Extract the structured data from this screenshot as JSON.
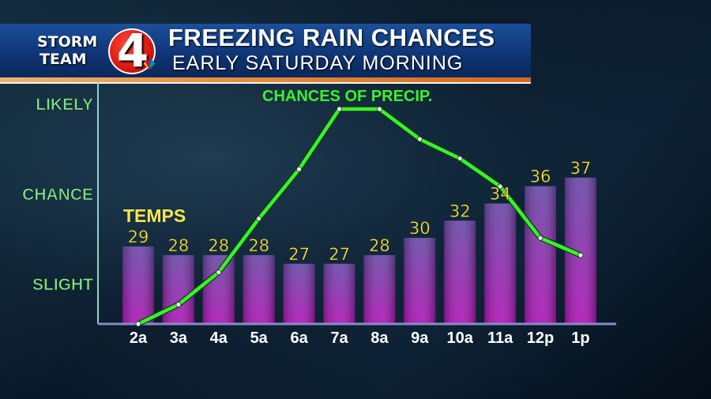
{
  "header": {
    "logo_storm": "STORM",
    "logo_team": "TEAM",
    "logo_number": "4",
    "title": "FREEZING RAIN CHANCES",
    "subtitle": "EARLY SATURDAY MORNING"
  },
  "chart_data": {
    "type": "bar",
    "categories": [
      "2a",
      "3a",
      "4a",
      "5a",
      "6a",
      "7a",
      "8a",
      "9a",
      "10a",
      "11a",
      "12p",
      "1p"
    ],
    "series": [
      {
        "name": "TEMPS",
        "type": "bar",
        "values": [
          29,
          28,
          28,
          28,
          27,
          27,
          28,
          30,
          32,
          34,
          36,
          37
        ]
      },
      {
        "name": "CHANCES OF PRECIP.",
        "type": "line",
        "values": [
          0.0,
          0.09,
          0.24,
          0.49,
          0.72,
          1.0,
          1.0,
          0.86,
          0.77,
          0.64,
          0.4,
          0.32
        ]
      }
    ],
    "y_levels": [
      "SLIGHT",
      "CHANCE",
      "LIKELY"
    ],
    "colors": {
      "bar_top": "#7a4fb2",
      "bar_bottom": "#a816b8",
      "line": "#3cf02e",
      "data_labels": "#f6e64a",
      "axis": "#8fd6c8"
    }
  }
}
